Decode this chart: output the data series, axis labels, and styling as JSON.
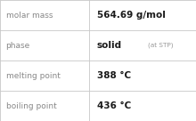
{
  "rows": [
    {
      "label": "molar mass",
      "value": "564.69 g/mol",
      "value2": null
    },
    {
      "label": "phase",
      "value": "solid",
      "value2": "(at STP)"
    },
    {
      "label": "melting point",
      "value": "388 °C",
      "value2": null
    },
    {
      "label": "boiling point",
      "value": "436 °C",
      "value2": null
    }
  ],
  "background_color": "#ffffff",
  "border_color": "#c8c8c8",
  "label_color": "#888888",
  "value_color": "#1a1a1a",
  "value2_color": "#999999",
  "label_fontsize": 6.5,
  "value_fontsize": 7.5,
  "value2_fontsize": 5.2,
  "col_split": 0.455,
  "figwidth": 2.2,
  "figheight": 1.36,
  "dpi": 100
}
